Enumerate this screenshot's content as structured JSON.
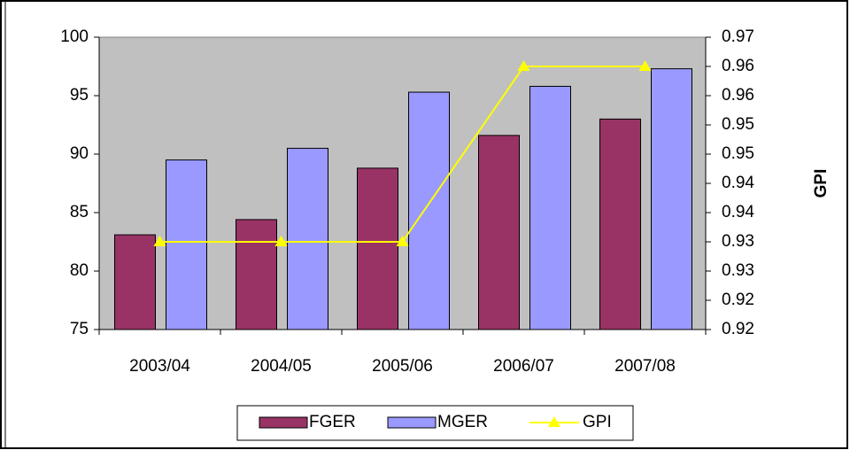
{
  "chart_data": {
    "type": "bar_line",
    "categories": [
      "2003/04",
      "2004/05",
      "2005/06",
      "2006/07",
      "2007/08"
    ],
    "series": [
      {
        "name": "FGER",
        "color": "#993366",
        "values": [
          83.1,
          84.4,
          88.8,
          91.6,
          93.0
        ]
      },
      {
        "name": "MGER",
        "color": "#9999ff",
        "values": [
          89.5,
          90.5,
          95.3,
          95.8,
          97.3
        ]
      },
      {
        "name": "GPI",
        "color": "#ffff00",
        "axis": "y2",
        "values": [
          0.93,
          0.93,
          0.93,
          0.96,
          0.96
        ]
      }
    ],
    "ylim": [
      75,
      100
    ],
    "yticks": [
      75,
      80,
      85,
      90,
      95,
      100
    ],
    "y2label": "GPI",
    "y2lim": [
      0.915,
      0.965
    ],
    "y2ticks": [
      {
        "value": 0.915,
        "label": "0.92"
      },
      {
        "value": 0.92,
        "label": "0.92"
      },
      {
        "value": 0.925,
        "label": "0.93"
      },
      {
        "value": 0.93,
        "label": "0.93"
      },
      {
        "value": 0.935,
        "label": "0.94"
      },
      {
        "value": 0.94,
        "label": "0.94"
      },
      {
        "value": 0.945,
        "label": "0.95"
      },
      {
        "value": 0.95,
        "label": "0.95"
      },
      {
        "value": 0.955,
        "label": "0.96"
      },
      {
        "value": 0.96,
        "label": "0.96"
      },
      {
        "value": 0.965,
        "label": "0.97"
      }
    ],
    "plot_background": "#c0c0c0"
  }
}
